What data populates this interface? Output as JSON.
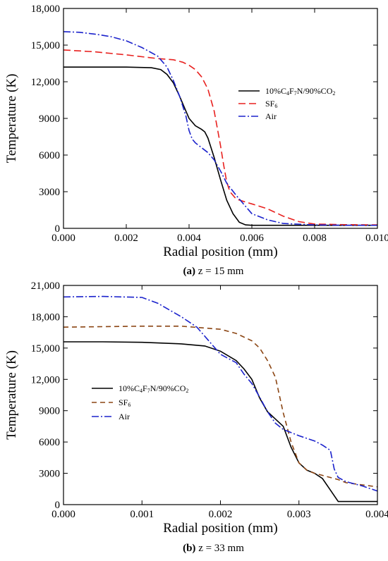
{
  "chart_data": [
    {
      "type": "line",
      "caption_prefix": "(a)",
      "caption_text": " z = 15 mm",
      "xlabel": "Radial position (mm)",
      "ylabel": "Temperature (K)",
      "xlim": [
        0,
        0.01
      ],
      "ylim": [
        0,
        18000
      ],
      "xticks": [
        "0.000",
        "0.002",
        "0.004",
        "0.006",
        "0.008",
        "0.010"
      ],
      "yticks": [
        "0",
        "3000",
        "6000",
        "9000",
        "12,000",
        "15,000",
        "18,000"
      ],
      "legend_position": "right-middle",
      "grid": false,
      "series": [
        {
          "name": "10%C4F7N/90%CO2",
          "label_parts": [
            "10%C",
            "4",
            "F",
            "7",
            "N/90%CO",
            "2"
          ],
          "color": "#000000",
          "dash": "solid",
          "x": [
            0.0,
            0.001,
            0.002,
            0.0028,
            0.0031,
            0.0033,
            0.0035,
            0.0037,
            0.0039,
            0.004,
            0.0042,
            0.0044,
            0.0045,
            0.0046,
            0.0048,
            0.005,
            0.0052,
            0.0054,
            0.0056,
            0.0058,
            0.006,
            0.007,
            0.008,
            0.009,
            0.01
          ],
          "y": [
            13200,
            13200,
            13200,
            13150,
            13000,
            12600,
            11900,
            10800,
            9600,
            9000,
            8400,
            8100,
            7900,
            7400,
            5800,
            4000,
            2300,
            1200,
            500,
            280,
            250,
            250,
            250,
            250,
            250
          ]
        },
        {
          "name": "SF6",
          "label_parts": [
            "SF",
            "6"
          ],
          "color": "#e8211f",
          "dash": "10,5",
          "x": [
            0.0,
            0.001,
            0.002,
            0.003,
            0.0035,
            0.0038,
            0.004,
            0.0042,
            0.0044,
            0.0046,
            0.0048,
            0.005,
            0.0051,
            0.0052,
            0.0053,
            0.0055,
            0.0058,
            0.006,
            0.0065,
            0.007,
            0.0075,
            0.008,
            0.009,
            0.01
          ],
          "y": [
            14600,
            14450,
            14200,
            13900,
            13800,
            13600,
            13350,
            13000,
            12400,
            11400,
            9600,
            6800,
            5200,
            3800,
            3000,
            2400,
            2150,
            2000,
            1600,
            1000,
            550,
            350,
            300,
            280
          ]
        },
        {
          "name": "Air",
          "label_parts": [
            "Air"
          ],
          "color": "#1b22cc",
          "dash": "10,3,2,3",
          "x": [
            0.0,
            0.0005,
            0.001,
            0.0015,
            0.002,
            0.0025,
            0.003,
            0.0033,
            0.0035,
            0.0037,
            0.0039,
            0.004,
            0.0041,
            0.0042,
            0.0044,
            0.0046,
            0.0048,
            0.005,
            0.0052,
            0.0055,
            0.0058,
            0.006,
            0.0065,
            0.007,
            0.008,
            0.009,
            0.01
          ],
          "y": [
            16100,
            16050,
            15900,
            15700,
            15350,
            14800,
            14100,
            13200,
            12100,
            10800,
            9200,
            8000,
            7300,
            7000,
            6600,
            6200,
            5600,
            4700,
            3700,
            2700,
            1800,
            1200,
            700,
            400,
            280,
            250,
            250
          ]
        }
      ]
    },
    {
      "type": "line",
      "caption_prefix": "(b)",
      "caption_text": " z = 33 mm",
      "xlabel": "Radial position (mm)",
      "ylabel": "Temperature (K)",
      "xlim": [
        0,
        0.004
      ],
      "ylim": [
        0,
        21000
      ],
      "xticks": [
        "0.000",
        "0.001",
        "0.002",
        "0.003",
        "0.004"
      ],
      "yticks": [
        "0",
        "3000",
        "6000",
        "9000",
        "12,000",
        "15,000",
        "18,000",
        "21,000"
      ],
      "legend_position": "left-middle",
      "grid": false,
      "series": [
        {
          "name": "10%C4F7N/90%CO2",
          "label_parts": [
            "10%C",
            "4",
            "F",
            "7",
            "N/90%CO",
            "2"
          ],
          "color": "#000000",
          "dash": "solid",
          "x": [
            0.0,
            0.0005,
            0.001,
            0.0015,
            0.0018,
            0.002,
            0.0022,
            0.0023,
            0.0024,
            0.0025,
            0.0026,
            0.0027,
            0.0028,
            0.0029,
            0.003,
            0.0031,
            0.0032,
            0.0033,
            0.0034,
            0.0035,
            0.0036,
            0.004
          ],
          "y": [
            15600,
            15600,
            15550,
            15400,
            15200,
            14700,
            13800,
            13000,
            12000,
            10200,
            8900,
            8200,
            7500,
            5500,
            4000,
            3300,
            3000,
            2500,
            1400,
            300,
            300,
            300
          ]
        },
        {
          "name": "SF6",
          "label_parts": [
            "SF",
            "6"
          ],
          "color": "#8b4513",
          "dash": "7,5",
          "x": [
            0.0,
            0.0005,
            0.001,
            0.0015,
            0.002,
            0.0022,
            0.0024,
            0.0025,
            0.0026,
            0.0027,
            0.0028,
            0.0029,
            0.003,
            0.0031,
            0.0032,
            0.0033,
            0.0034,
            0.0035,
            0.0036,
            0.0038,
            0.004
          ],
          "y": [
            17000,
            17050,
            17100,
            17100,
            16800,
            16400,
            15700,
            15000,
            13800,
            12200,
            8800,
            6000,
            4000,
            3300,
            3000,
            2800,
            2600,
            2400,
            2100,
            1900,
            1700
          ]
        },
        {
          "name": "Air",
          "label_parts": [
            "Air"
          ],
          "color": "#1b22cc",
          "dash": "10,3,2,3",
          "x": [
            0.0,
            0.0005,
            0.001,
            0.0012,
            0.0015,
            0.0017,
            0.002,
            0.0022,
            0.0023,
            0.0024,
            0.0025,
            0.0026,
            0.0027,
            0.0028,
            0.0029,
            0.003,
            0.0032,
            0.0033,
            0.0034,
            0.00345,
            0.0035,
            0.0036,
            0.0038,
            0.004
          ],
          "y": [
            19900,
            19950,
            19850,
            19300,
            18000,
            17000,
            14400,
            13600,
            12500,
            11600,
            10300,
            8900,
            7800,
            7200,
            6900,
            6600,
            6100,
            5700,
            5200,
            3400,
            2600,
            2200,
            1800,
            1300
          ]
        }
      ]
    }
  ]
}
